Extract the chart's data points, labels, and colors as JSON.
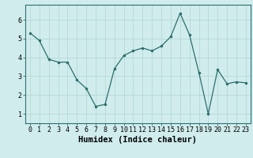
{
  "x": [
    0,
    1,
    2,
    3,
    4,
    5,
    6,
    7,
    8,
    9,
    10,
    11,
    12,
    13,
    14,
    15,
    16,
    17,
    18,
    19,
    20,
    21,
    22,
    23
  ],
  "y": [
    5.3,
    4.9,
    3.9,
    3.75,
    3.75,
    2.8,
    2.35,
    1.4,
    1.5,
    3.4,
    4.1,
    4.35,
    4.5,
    4.35,
    4.6,
    5.1,
    6.35,
    5.2,
    3.2,
    1.0,
    3.35,
    2.6,
    2.7,
    2.65
  ],
  "xlabel": "Humidex (Indice chaleur)",
  "ylim": [
    0.5,
    6.8
  ],
  "xlim": [
    -0.5,
    23.5
  ],
  "yticks": [
    1,
    2,
    3,
    4,
    5,
    6
  ],
  "xticks": [
    0,
    1,
    2,
    3,
    4,
    5,
    6,
    7,
    8,
    9,
    10,
    11,
    12,
    13,
    14,
    15,
    16,
    17,
    18,
    19,
    20,
    21,
    22,
    23
  ],
  "line_color": "#2d6e6e",
  "marker_color": "#2d6e6e",
  "bg_color": "#d0ecec",
  "grid_color": "#b8d8d8",
  "tick_label_fontsize": 6.0,
  "xlabel_fontsize": 7.5
}
